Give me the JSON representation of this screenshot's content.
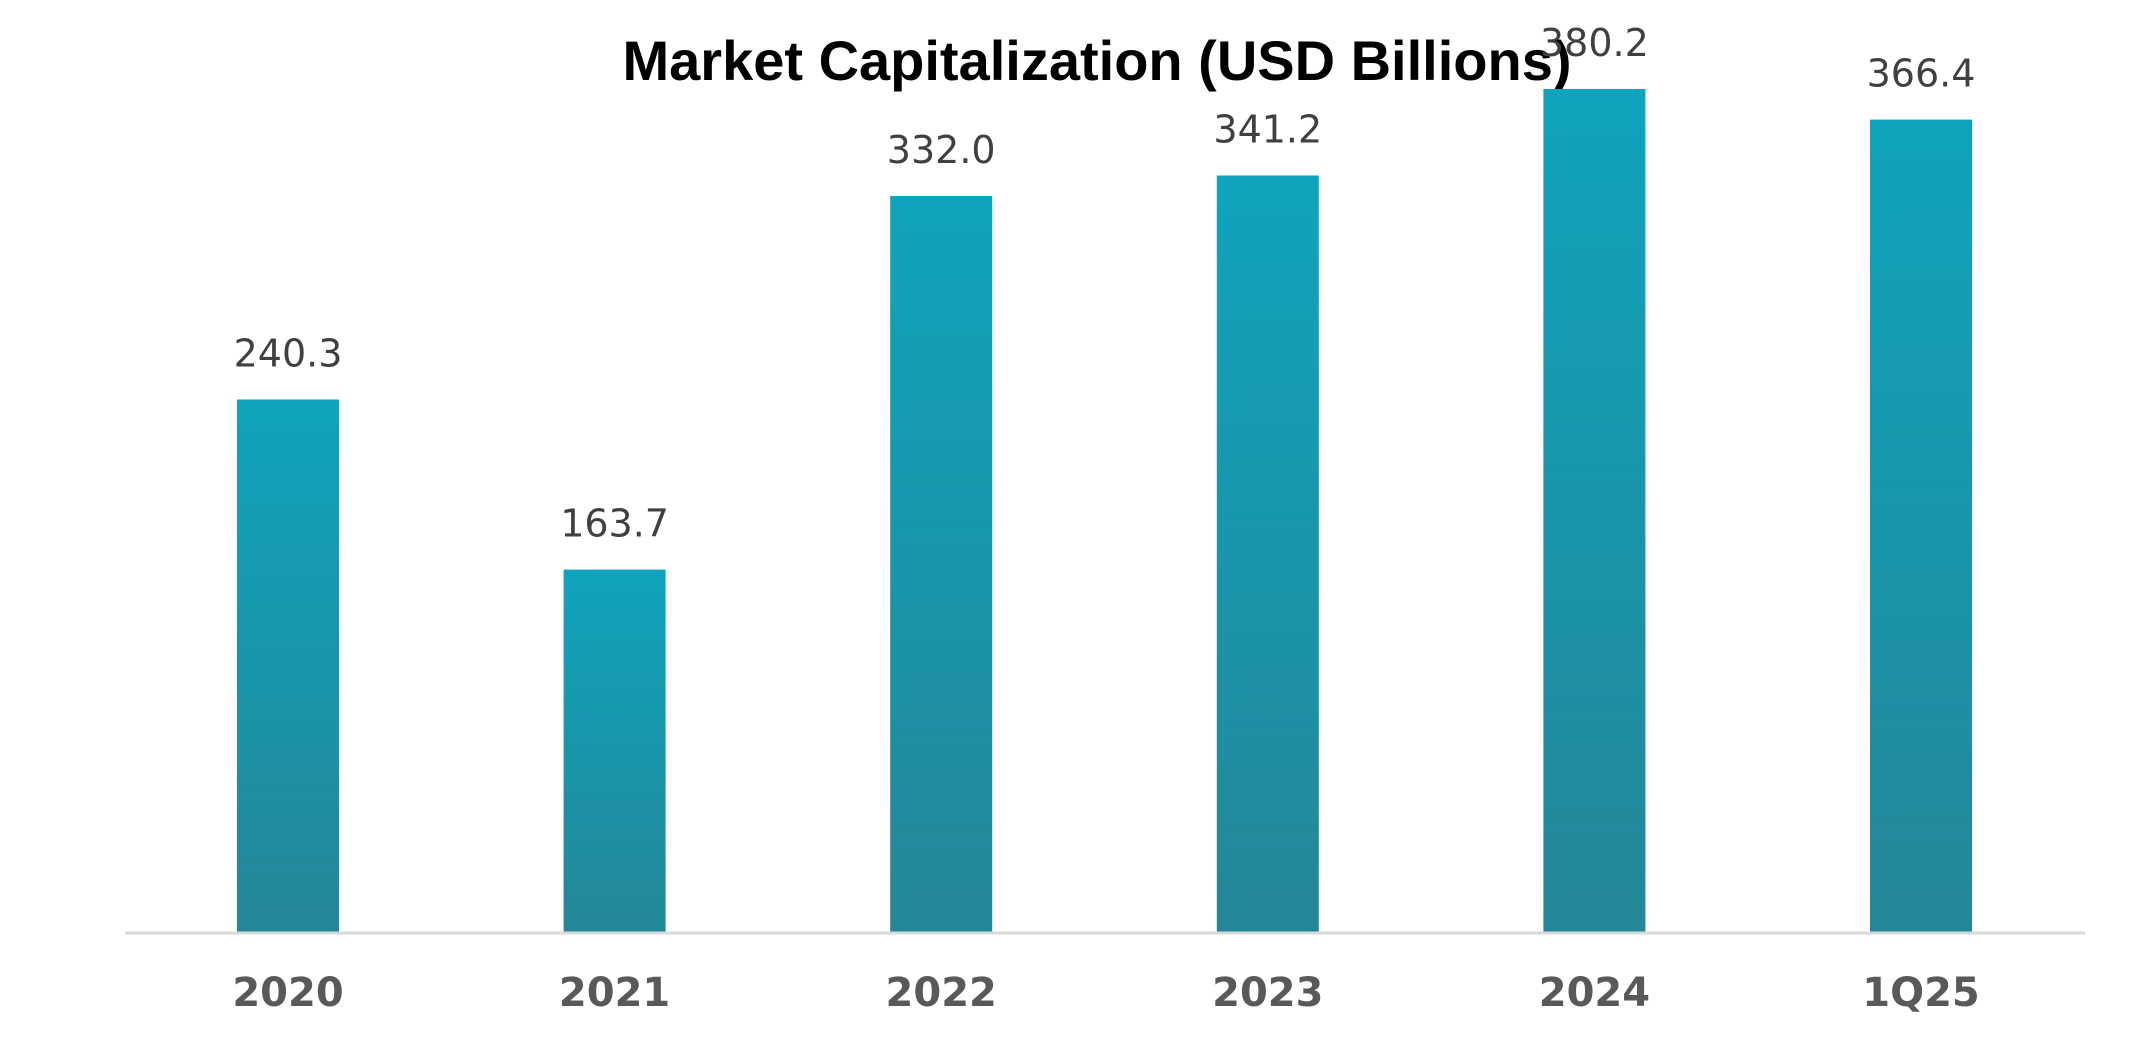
{
  "chart_data": {
    "type": "bar",
    "title": "Market Capitalization (USD Billions)",
    "categories": [
      "2020",
      "2021",
      "2022",
      "2023",
      "2024",
      "1Q25"
    ],
    "values": [
      240.3,
      163.7,
      332.0,
      341.2,
      380.2,
      366.4
    ],
    "data_labels": [
      "240.3",
      "163.7",
      "332.0",
      "341.2",
      "380.2",
      "366.4"
    ],
    "ylim": [
      0,
      400
    ],
    "grid": false,
    "legend": "none",
    "colors": {
      "bar_top": "#0fa4bd",
      "bar_bottom": "#248797",
      "axis": "#d9d9d9"
    }
  }
}
